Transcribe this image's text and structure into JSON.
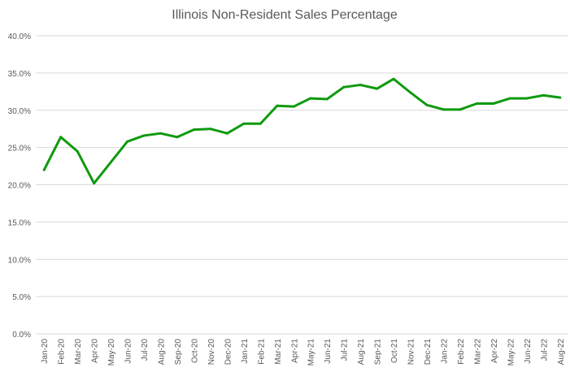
{
  "chart_data": {
    "type": "line",
    "title": "Illinois Non-Resident Sales Percentage",
    "xlabel": "",
    "ylabel": "",
    "ylim": [
      0,
      40
    ],
    "yticks": [
      "0.0%",
      "5.0%",
      "10.0%",
      "15.0%",
      "20.0%",
      "25.0%",
      "30.0%",
      "35.0%",
      "40.0%"
    ],
    "grid": true,
    "legend": "none",
    "categories": [
      "Jan-20",
      "Feb-20",
      "Mar-20",
      "Apr-20",
      "May-20",
      "Jun-20",
      "Jul-20",
      "Aug-20",
      "Sep-20",
      "Oct-20",
      "Nov-20",
      "Dec-20",
      "Jan-21",
      "Feb-21",
      "Mar-21",
      "Apr-21",
      "May-21",
      "Jun-21",
      "Jul-21",
      "Aug-21",
      "Sep-21",
      "Oct-21",
      "Nov-21",
      "Dec-21",
      "Jan-22",
      "Feb-22",
      "Mar-22",
      "Apr-22",
      "May-22",
      "Jun-22",
      "Jul-22",
      "Aug-22"
    ],
    "series": [
      {
        "name": "Non-Resident Sales Percentage",
        "color": "#0E9A0E",
        "values": [
          22.0,
          26.4,
          24.5,
          20.2,
          23.0,
          25.8,
          26.6,
          26.9,
          26.4,
          27.4,
          27.5,
          26.9,
          28.2,
          28.2,
          30.6,
          30.5,
          31.6,
          31.5,
          33.1,
          33.4,
          32.9,
          34.2,
          32.4,
          30.7,
          30.1,
          30.1,
          30.9,
          30.9,
          31.6,
          31.6,
          32.0,
          31.7
        ]
      }
    ]
  }
}
